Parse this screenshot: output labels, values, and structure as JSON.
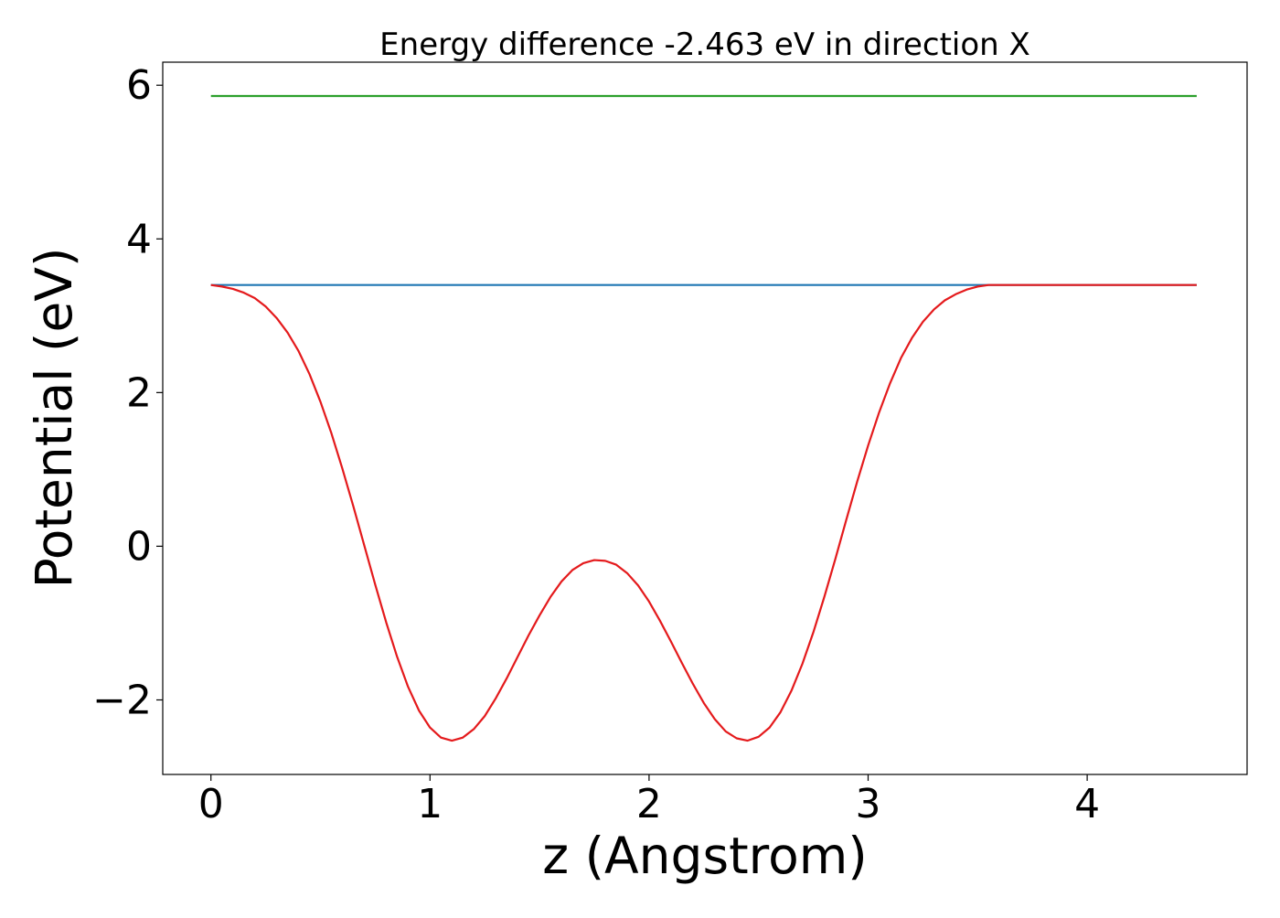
{
  "chart_data": {
    "type": "line",
    "title": "Energy difference -2.463 eV in direction X",
    "xlabel": "z (Angstrom)",
    "ylabel": "Potential (eV)",
    "xlim": [
      -0.22,
      4.73
    ],
    "ylim": [
      -2.97,
      6.3
    ],
    "xticks": [
      0,
      1,
      2,
      3,
      4
    ],
    "xtick_labels": [
      "0",
      "1",
      "2",
      "3",
      "4"
    ],
    "yticks": [
      -2,
      0,
      2,
      4,
      6
    ],
    "ytick_labels": [
      "−2",
      "0",
      "2",
      "4",
      "6"
    ],
    "grid": false,
    "series": [
      {
        "color": "#2ca02c",
        "x": [
          0,
          4.5
        ],
        "y": [
          5.86,
          5.86
        ]
      },
      {
        "color": "#1f77b4",
        "x": [
          0,
          4.5
        ],
        "y": [
          3.4,
          3.4
        ]
      },
      {
        "color": "#e41a1c",
        "x": [
          0,
          0.05,
          0.1,
          0.15,
          0.2,
          0.25,
          0.3,
          0.35,
          0.4,
          0.45,
          0.5,
          0.55,
          0.6,
          0.65,
          0.7,
          0.75,
          0.8,
          0.85,
          0.9,
          0.95,
          1.0,
          1.05,
          1.1,
          1.15,
          1.2,
          1.25,
          1.3,
          1.35,
          1.4,
          1.45,
          1.5,
          1.55,
          1.6,
          1.65,
          1.7,
          1.75,
          1.8,
          1.85,
          1.9,
          1.95,
          2.0,
          2.05,
          2.1,
          2.15,
          2.2,
          2.25,
          2.3,
          2.35,
          2.4,
          2.45,
          2.5,
          2.55,
          2.6,
          2.65,
          2.7,
          2.75,
          2.8,
          2.85,
          2.9,
          2.95,
          3.0,
          3.05,
          3.1,
          3.15,
          3.2,
          3.25,
          3.3,
          3.35,
          3.4,
          3.45,
          3.5,
          3.55,
          3.6,
          3.65,
          3.7,
          3.75,
          3.8,
          3.85,
          3.9,
          3.95,
          4.0,
          4.05,
          4.1,
          4.15,
          4.2,
          4.25,
          4.3,
          4.35,
          4.4,
          4.45,
          4.5
        ],
        "y": [
          3.4,
          3.38,
          3.35,
          3.3,
          3.23,
          3.12,
          2.97,
          2.78,
          2.54,
          2.24,
          1.88,
          1.47,
          1.01,
          0.52,
          0.01,
          -0.5,
          -0.99,
          -1.44,
          -1.83,
          -2.14,
          -2.36,
          -2.49,
          -2.53,
          -2.49,
          -2.38,
          -2.21,
          -1.98,
          -1.72,
          -1.44,
          -1.16,
          -0.9,
          -0.66,
          -0.46,
          -0.31,
          -0.22,
          -0.18,
          -0.19,
          -0.24,
          -0.35,
          -0.51,
          -0.72,
          -0.97,
          -1.24,
          -1.52,
          -1.79,
          -2.04,
          -2.25,
          -2.41,
          -2.5,
          -2.53,
          -2.48,
          -2.36,
          -2.16,
          -1.88,
          -1.53,
          -1.12,
          -0.66,
          -0.17,
          0.34,
          0.84,
          1.31,
          1.74,
          2.12,
          2.45,
          2.71,
          2.92,
          3.08,
          3.2,
          3.28,
          3.34,
          3.38,
          3.4,
          3.4,
          3.4,
          3.4,
          3.4,
          3.4,
          3.4,
          3.4,
          3.4,
          3.4,
          3.4,
          3.4,
          3.4,
          3.4,
          3.4,
          3.4,
          3.4,
          3.4,
          3.4,
          3.4
        ]
      }
    ]
  }
}
